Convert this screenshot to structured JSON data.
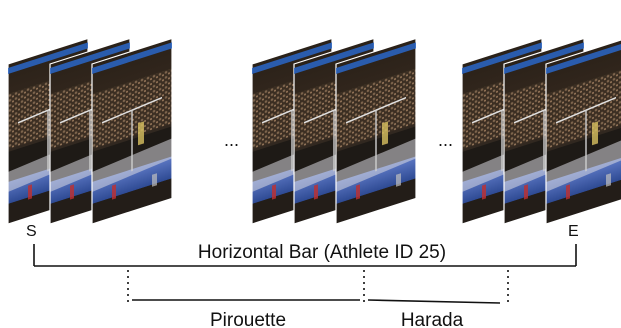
{
  "title": "Horizontal Bar (Athlete ID 25)",
  "start_label": "S",
  "end_label": "E",
  "ellipsis": "...",
  "segments": [
    {
      "label": "Pirouette"
    },
    {
      "label": "Harada"
    }
  ],
  "frame_groups": 3,
  "frames_per_group": 3,
  "colors": {
    "line": "#111111",
    "arena_dark": "#1b1712",
    "crowd": "#4a3b2c",
    "floor": "#3b5aa8",
    "mat": "#2f6fb6",
    "banner": "#2060c0"
  }
}
